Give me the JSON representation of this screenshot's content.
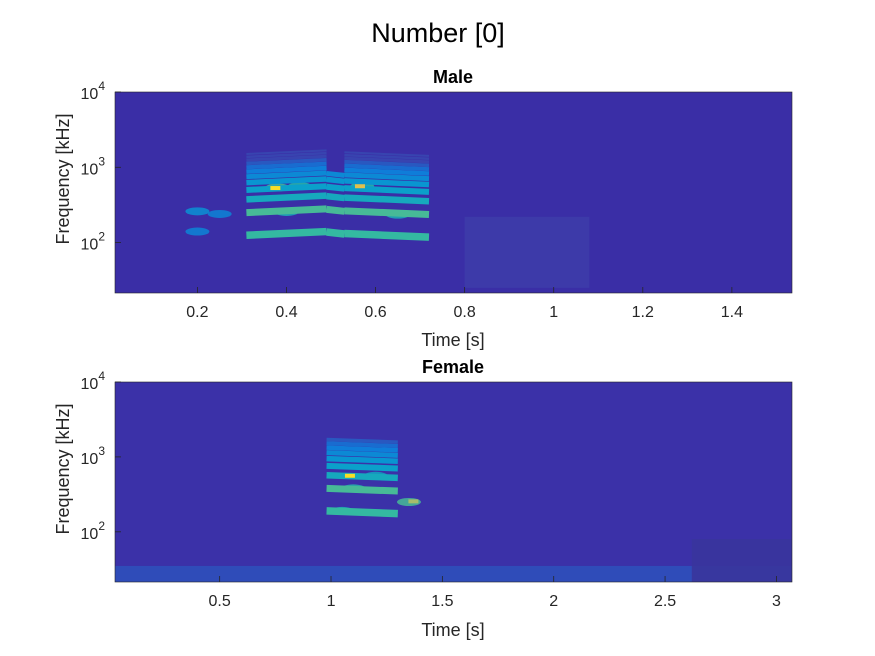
{
  "figure": {
    "suptitle": "Number [0]"
  },
  "chart_data": [
    {
      "type": "heatmap",
      "title": "Male",
      "xlabel": "Time [s]",
      "ylabel": "Frequency [kHz]",
      "xlim": [
        0.015,
        1.535
      ],
      "ylim_log10": [
        1.33,
        4.0
      ],
      "yscale": "log",
      "xticks": [
        0.2,
        0.4,
        0.6,
        0.8,
        1,
        1.2,
        1.4
      ],
      "xtick_labels": [
        "0.2",
        "0.4",
        "0.6",
        "0.8",
        "1",
        "1.2",
        "1.4"
      ],
      "yticks": [
        {
          "base": "10",
          "exp": "2",
          "value": 100
        },
        {
          "base": "10",
          "exp": "3",
          "value": 1000
        },
        {
          "base": "10",
          "exp": "4",
          "value": 10000
        }
      ],
      "colormap": "parula",
      "background_color": "#3a2ea6",
      "harmonic_segments": [
        {
          "t0": 0.31,
          "t1": 0.49,
          "f0": 125,
          "f1": 140,
          "n": 12
        },
        {
          "t0": 0.49,
          "t1": 0.53,
          "f0": 138,
          "f1": 130,
          "n": 6
        },
        {
          "t0": 0.53,
          "t1": 0.72,
          "f0": 132,
          "f1": 118,
          "n": 12
        }
      ],
      "blobs": [
        {
          "t": 0.2,
          "f": 260,
          "i": 0.35
        },
        {
          "t": 0.25,
          "f": 240,
          "i": 0.3
        },
        {
          "t": 0.2,
          "f": 140,
          "i": 0.3
        },
        {
          "t": 0.38,
          "f": 540,
          "i": 0.6
        },
        {
          "t": 0.43,
          "f": 560,
          "i": 0.55
        },
        {
          "t": 0.57,
          "f": 560,
          "i": 0.55
        },
        {
          "t": 0.4,
          "f": 255,
          "i": 0.5
        },
        {
          "t": 0.65,
          "f": 235,
          "i": 0.5
        }
      ],
      "hot_spots": [
        {
          "t": 0.375,
          "f": 530,
          "i": 0.95
        },
        {
          "t": 0.565,
          "f": 560,
          "i": 0.85
        }
      ],
      "noise_regions": [
        {
          "t0": 0.8,
          "t1": 1.08,
          "f0": 25,
          "f1": 220,
          "i": 0.1
        }
      ]
    },
    {
      "type": "heatmap",
      "title": "Female",
      "xlabel": "Time [s]",
      "ylabel": "Frequency [kHz]",
      "xlim": [
        0.03,
        3.07
      ],
      "ylim_log10": [
        1.33,
        4.0
      ],
      "yscale": "log",
      "xticks": [
        0.5,
        1,
        1.5,
        2,
        2.5,
        3
      ],
      "xtick_labels": [
        "0.5",
        "1",
        "1.5",
        "2",
        "2.5",
        "3"
      ],
      "yticks": [
        {
          "base": "10",
          "exp": "2",
          "value": 100
        },
        {
          "base": "10",
          "exp": "3",
          "value": 1000
        },
        {
          "base": "10",
          "exp": "4",
          "value": 10000
        }
      ],
      "colormap": "parula",
      "background_color": "#3b31a8",
      "harmonic_segments": [
        {
          "t0": 0.98,
          "t1": 1.3,
          "f0": 190,
          "f1": 175,
          "n": 9
        }
      ],
      "blobs": [
        {
          "t": 1.1,
          "f": 380,
          "i": 0.55
        },
        {
          "t": 1.05,
          "f": 190,
          "i": 0.5
        },
        {
          "t": 1.2,
          "f": 560,
          "i": 0.45
        },
        {
          "t": 1.35,
          "f": 250,
          "i": 0.6
        }
      ],
      "hot_spots": [
        {
          "t": 1.085,
          "f": 560,
          "i": 0.95
        },
        {
          "t": 1.37,
          "f": 255,
          "i": 0.75
        }
      ],
      "noise_regions": [
        {
          "t0": 0.03,
          "t1": 3.07,
          "f0": 20,
          "f1": 35,
          "i": 0.15
        },
        {
          "t0": 2.62,
          "t1": 3.07,
          "f0": 20,
          "f1": 80,
          "i": 0.06
        }
      ]
    }
  ]
}
